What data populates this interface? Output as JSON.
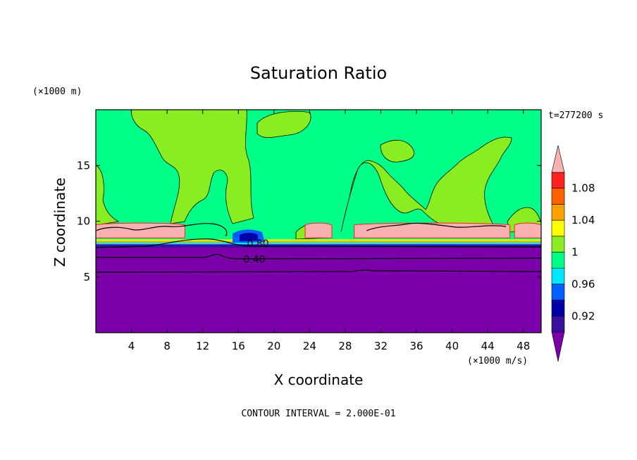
{
  "chart_data": {
    "type": "heatmap",
    "title": "Saturation Ratio",
    "xlabel": "X coordinate",
    "ylabel": "Z coordinate",
    "x_unit": "(×1000 m/s)",
    "y_unit": "(×1000 m)",
    "time_label": "t=277200 s",
    "footer": "CONTOUR INTERVAL = 2.000E-01",
    "xlim": [
      0,
      50
    ],
    "ylim": [
      0,
      20
    ],
    "x_ticks": [
      4,
      8,
      12,
      16,
      20,
      24,
      28,
      32,
      36,
      40,
      44,
      48
    ],
    "y_ticks": [
      5,
      10,
      15
    ],
    "colorbar": {
      "levels": [
        0.9,
        0.92,
        0.94,
        0.96,
        0.98,
        1.0,
        1.02,
        1.04,
        1.06,
        1.08,
        1.1
      ],
      "labeled_ticks": [
        {
          "value": 0.92,
          "label": "0.92"
        },
        {
          "value": 0.96,
          "label": "0.96"
        },
        {
          "value": 1.0,
          "label": "1"
        },
        {
          "value": 1.04,
          "label": "1.04"
        },
        {
          "value": 1.08,
          "label": "1.08"
        }
      ],
      "colors": [
        "#3a10a0",
        "#0000a8",
        "#0060ff",
        "#00e8ff",
        "#00ff88",
        "#88ee22",
        "#ffff00",
        "#ffa000",
        "#ff6000",
        "#ff2020"
      ],
      "under_color": "#7a00aa",
      "over_color": "#f8b0b0"
    },
    "contour_labels": [
      {
        "x": 18.2,
        "z": 8.0,
        "text": "0.80"
      },
      {
        "x": 17.8,
        "z": 6.6,
        "text": "0.40"
      }
    ],
    "regions": {
      "upper_background_color": "#00ff88",
      "lower_layer_color": "#7a00aa",
      "lower_layer_top_z": 8.0,
      "light_green_patches_color": "#88ee22",
      "pink_band_color": "#f8b0b0",
      "pink_band_segments": [
        [
          0,
          10
        ],
        [
          23.5,
          26.5
        ],
        [
          29,
          46.5
        ],
        [
          47,
          50
        ]
      ],
      "pink_band_z": [
        8.5,
        9.9
      ]
    }
  }
}
